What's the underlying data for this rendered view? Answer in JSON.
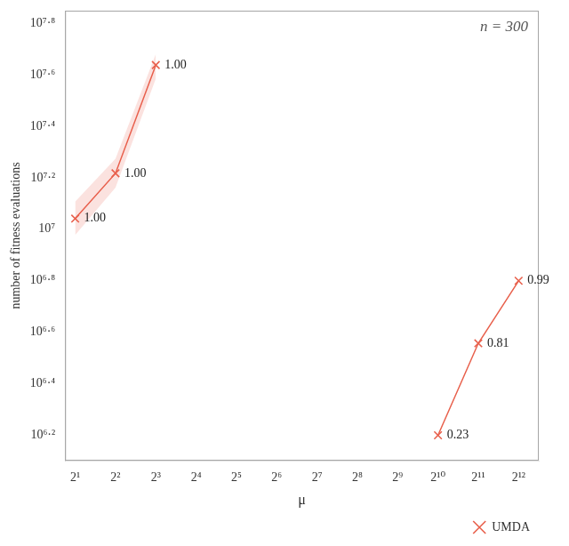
{
  "chart_data": {
    "type": "line",
    "xlabel": "μ",
    "ylabel": "number of fitness evaluations",
    "log": true,
    "grid": false,
    "legend": "lower right",
    "marker": "x",
    "xlim": [
      1.6817928305074,
      5792.6187514986
    ],
    "ylim": [
      1258925.4117942,
      70794578.438414
    ],
    "xticks": [
      {
        "value": 2,
        "label": "2¹"
      },
      {
        "value": 4,
        "label": "2²"
      },
      {
        "value": 8,
        "label": "2³"
      },
      {
        "value": 16,
        "label": "2⁴"
      },
      {
        "value": 32,
        "label": "2⁵"
      },
      {
        "value": 64,
        "label": "2⁶"
      },
      {
        "value": 128,
        "label": "2⁷"
      },
      {
        "value": 256,
        "label": "2⁸"
      },
      {
        "value": 512,
        "label": "2⁹"
      },
      {
        "value": 1024,
        "label": "2¹⁰"
      },
      {
        "value": 2048,
        "label": "2¹¹"
      },
      {
        "value": 4096,
        "label": "2¹²"
      }
    ],
    "yticks": [
      {
        "value": 1584893.1924611,
        "label": "10⁶·²"
      },
      {
        "value": 2511886.4315096,
        "label": "10⁶·⁴"
      },
      {
        "value": 3981071.705535,
        "label": "10⁶·⁶"
      },
      {
        "value": 6309573.4448019,
        "label": "10⁶·⁸"
      },
      {
        "value": 10000000,
        "label": "10⁷"
      },
      {
        "value": 15848931.924611,
        "label": "10⁷·²"
      },
      {
        "value": 25118864.315096,
        "label": "10⁷·⁴"
      },
      {
        "value": 39810717.05535,
        "label": "10⁷·⁶"
      },
      {
        "value": 63095734.448019,
        "label": "10⁷·⁸"
      }
    ],
    "annotations": [
      {
        "text": "n = 300",
        "color": "#555555"
      }
    ],
    "series": [
      {
        "name": "UMDA",
        "color": "#e8604c",
        "x": [
          1024,
          2048,
          4096
        ],
        "values": [
          1580000,
          3600000,
          6300000
        ],
        "point_labels": [
          "0.23",
          "0.81",
          "0.99"
        ]
      },
      {
        "color": "#e8604c",
        "x": [
          2,
          4,
          8
        ],
        "values": [
          11000000,
          16500000,
          43500000
        ],
        "lower": [
          9500000,
          14500000,
          38500000
        ],
        "upper": [
          12800000,
          18800000,
          48000000
        ],
        "point_labels": [
          "1.00",
          "1.00",
          "1.00"
        ]
      }
    ]
  }
}
